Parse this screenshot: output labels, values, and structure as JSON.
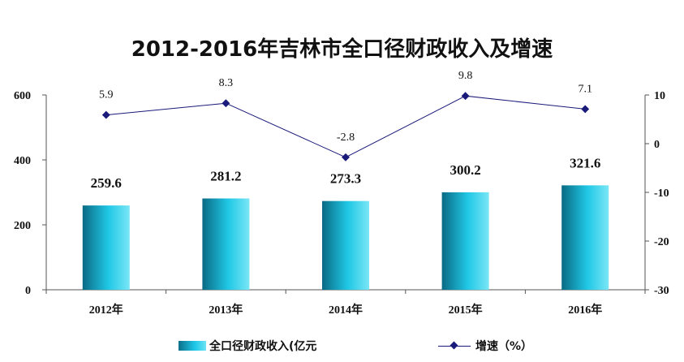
{
  "chart_data": {
    "type": "bar",
    "title": "2012-2016年吉林市全口径财政收入及增速",
    "categories": [
      "2012年",
      "2013年",
      "2014年",
      "2015年",
      "2016年"
    ],
    "series": [
      {
        "name": "全口径财政收入(亿元",
        "type": "bar",
        "axis": "left",
        "values": [
          259.6,
          281.2,
          273.3,
          300.2,
          321.6
        ],
        "labels": [
          "259.6",
          "281.2",
          "273.3",
          "300.2",
          "321.6"
        ]
      },
      {
        "name": "增速（%）",
        "type": "line",
        "axis": "right",
        "values": [
          5.9,
          8.3,
          -2.8,
          9.8,
          7.1
        ],
        "labels": [
          "5.9",
          "8.3",
          "-2.8",
          "9.8",
          "7.1"
        ]
      }
    ],
    "y_left": {
      "ylim": [
        0,
        600
      ],
      "ticks": [
        "0",
        "200",
        "400",
        "600"
      ]
    },
    "y_right": {
      "ylim": [
        -30,
        10
      ],
      "ticks": [
        "-30",
        "-20",
        "-10",
        "0",
        "10"
      ]
    },
    "legend_position": "bottom",
    "colors": {
      "bar": "#1fc8e8",
      "line": "#1a1a7a"
    }
  }
}
